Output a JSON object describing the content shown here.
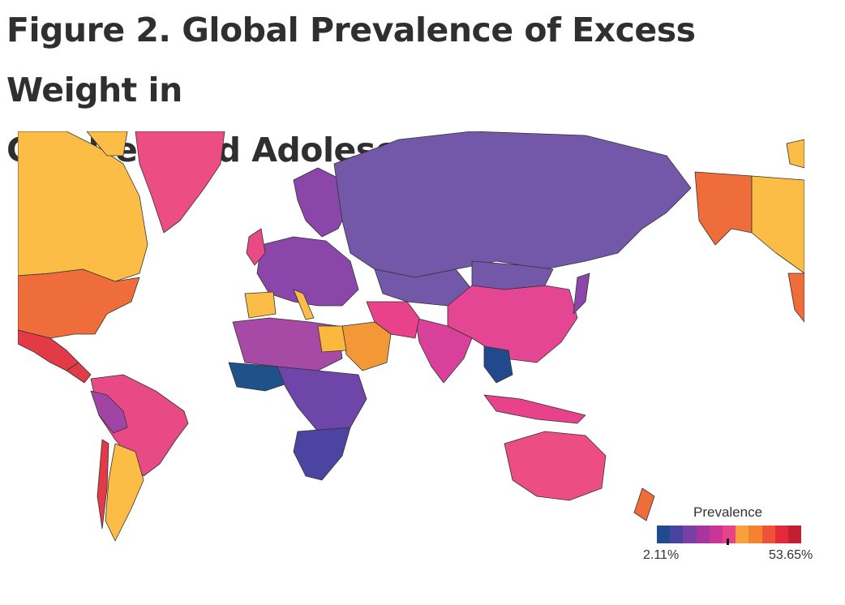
{
  "title_line1": "Figure 2.  Global Prevalence of Excess Weight in",
  "title_line2": "Children and Adolescents",
  "legend": {
    "title": "Prevalence",
    "min": "2.11%",
    "max": "53.65%",
    "colors": [
      "#214a8c",
      "#4a43a0",
      "#7a3fa5",
      "#a6359f",
      "#c93593",
      "#e8428a",
      "#f7a03c",
      "#f5822f",
      "#ee5338",
      "#e42a3a",
      "#c21f35"
    ]
  },
  "palette": {
    "usa": "#ef6d3a",
    "canada": "#fbbd45",
    "mexico": "#e33a48",
    "greenland": "#ec4d82",
    "south_america": "#e84a86",
    "argentina": "#fbbd45",
    "bolivia": "#a145a5",
    "russia": "#7357a8",
    "china": "#e44694",
    "india": "#d9409a",
    "europe": "#8a46a8",
    "north_africa": "#a64aa6",
    "egypt": "#fbb83f",
    "saudi": "#f39837",
    "west_africa": "#1f5289",
    "central_africa": "#6e45a8",
    "southern_africa": "#4b44a0",
    "australia": "#ec4d82",
    "nz": "#ef6d3a",
    "alaska": "#ef6d3a",
    "yukon": "#fbbd45",
    "iran": "#e8428a",
    "spain": "#fbbd45",
    "se_asia": "#214a8c",
    "indonesia": "#e8428a",
    "border": "#333333"
  }
}
